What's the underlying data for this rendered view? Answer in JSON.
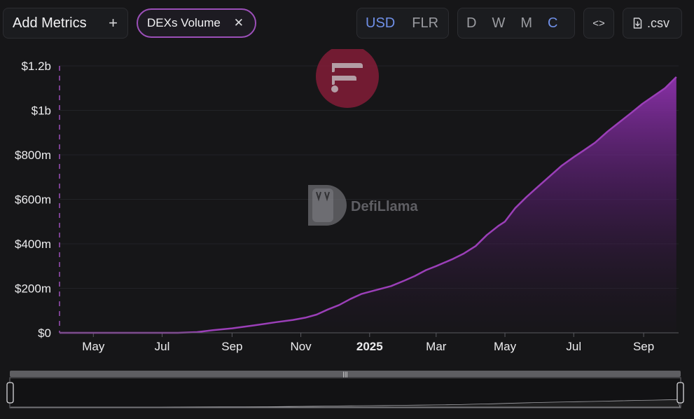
{
  "toolbar": {
    "add_metrics_label": "Add Metrics",
    "add_icon": "plus-icon",
    "metric_chip_label": "DEXs Volume",
    "remove_icon": "close-icon",
    "currency_options": [
      "USD",
      "FLR"
    ],
    "currency_selected": "USD",
    "period_options": [
      "D",
      "W",
      "M",
      "C"
    ],
    "period_selected": "C",
    "embed_icon": "code-icon",
    "csv_label": ".csv",
    "csv_icon": "download-file-icon"
  },
  "watermark": {
    "text": "DefiLlama"
  },
  "colors": {
    "series": "#9b3fb8",
    "accent": "#6f8fe6",
    "logo_circle": "#8a1d3a"
  },
  "chart_data": {
    "type": "area",
    "title": "",
    "xlabel": "",
    "ylabel": "",
    "ylim": [
      0,
      1200000000
    ],
    "y_ticks": [
      {
        "value": 0,
        "label": "$0"
      },
      {
        "value": 200000000,
        "label": "$200m"
      },
      {
        "value": 400000000,
        "label": "$400m"
      },
      {
        "value": 600000000,
        "label": "$600m"
      },
      {
        "value": 800000000,
        "label": "$800m"
      },
      {
        "value": 1000000000,
        "label": "$1b"
      },
      {
        "value": 1200000000,
        "label": "$1.2b"
      }
    ],
    "xlim": [
      "2024-04-01",
      "2025-10-02"
    ],
    "x_ticks": [
      {
        "date": "2024-05-01",
        "label": "May",
        "bold": false
      },
      {
        "date": "2024-07-01",
        "label": "Jul",
        "bold": false
      },
      {
        "date": "2024-09-01",
        "label": "Sep",
        "bold": false
      },
      {
        "date": "2024-11-01",
        "label": "Nov",
        "bold": false
      },
      {
        "date": "2025-01-01",
        "label": "2025",
        "bold": true
      },
      {
        "date": "2025-03-01",
        "label": "Mar",
        "bold": false
      },
      {
        "date": "2025-05-01",
        "label": "May",
        "bold": false
      },
      {
        "date": "2025-07-01",
        "label": "Jul",
        "bold": false
      },
      {
        "date": "2025-09-01",
        "label": "Sep",
        "bold": false
      }
    ],
    "grid": true,
    "legend": "none",
    "series": [
      {
        "cumulative": true,
        "points": [
          [
            "2024-04-01",
            0
          ],
          [
            "2024-06-01",
            0
          ],
          [
            "2024-07-15",
            0
          ],
          [
            "2024-08-01",
            3000000
          ],
          [
            "2024-08-15",
            12000000
          ],
          [
            "2024-09-01",
            20000000
          ],
          [
            "2024-09-20",
            33000000
          ],
          [
            "2024-10-10",
            48000000
          ],
          [
            "2024-10-25",
            58000000
          ],
          [
            "2024-11-05",
            68000000
          ],
          [
            "2024-11-15",
            82000000
          ],
          [
            "2024-11-25",
            105000000
          ],
          [
            "2024-12-05",
            125000000
          ],
          [
            "2024-12-15",
            152000000
          ],
          [
            "2024-12-25",
            175000000
          ],
          [
            "2025-01-05",
            190000000
          ],
          [
            "2025-01-20",
            210000000
          ],
          [
            "2025-02-01",
            235000000
          ],
          [
            "2025-02-10",
            255000000
          ],
          [
            "2025-02-20",
            282000000
          ],
          [
            "2025-03-01",
            300000000
          ],
          [
            "2025-03-15",
            330000000
          ],
          [
            "2025-03-25",
            355000000
          ],
          [
            "2025-04-05",
            390000000
          ],
          [
            "2025-04-15",
            440000000
          ],
          [
            "2025-04-25",
            480000000
          ],
          [
            "2025-05-01",
            500000000
          ],
          [
            "2025-05-10",
            560000000
          ],
          [
            "2025-05-20",
            610000000
          ],
          [
            "2025-05-31",
            660000000
          ],
          [
            "2025-06-10",
            705000000
          ],
          [
            "2025-06-20",
            750000000
          ],
          [
            "2025-07-01",
            790000000
          ],
          [
            "2025-07-10",
            820000000
          ],
          [
            "2025-07-20",
            855000000
          ],
          [
            "2025-07-31",
            905000000
          ],
          [
            "2025-08-10",
            945000000
          ],
          [
            "2025-08-20",
            985000000
          ],
          [
            "2025-08-31",
            1030000000
          ],
          [
            "2025-09-10",
            1065000000
          ],
          [
            "2025-09-20",
            1100000000
          ],
          [
            "2025-09-30",
            1150000000
          ]
        ]
      }
    ]
  }
}
